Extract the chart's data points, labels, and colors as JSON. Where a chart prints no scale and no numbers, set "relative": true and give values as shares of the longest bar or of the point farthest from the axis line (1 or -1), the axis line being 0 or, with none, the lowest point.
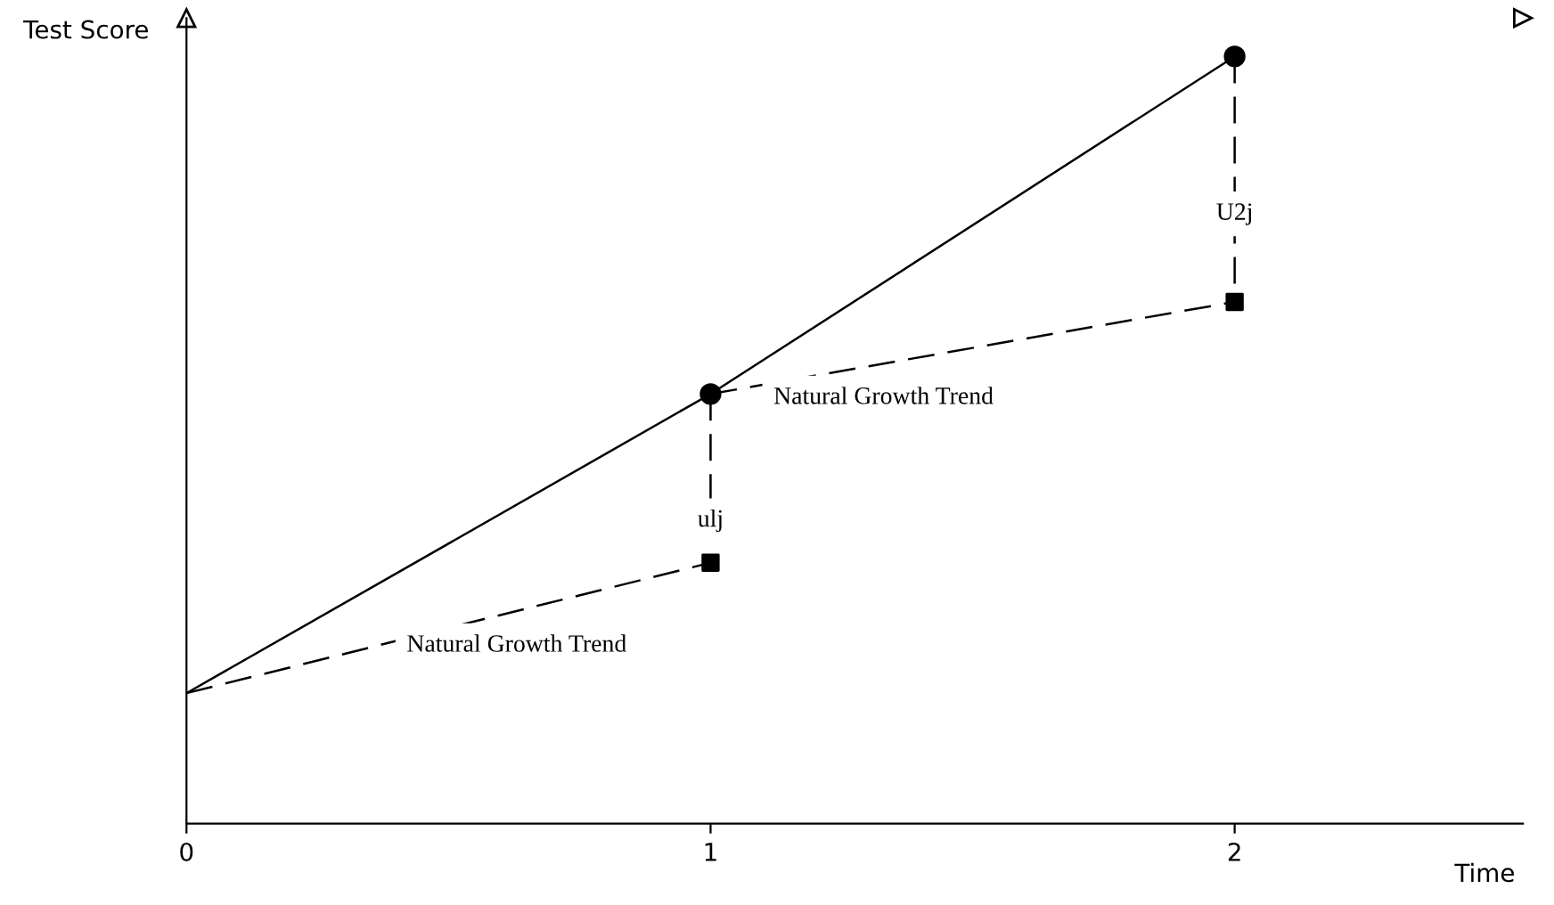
{
  "chart_data": {
    "type": "line",
    "relative": true,
    "xlabel": "Time",
    "ylabel": "Test Score",
    "xlim": [
      0,
      2.55
    ],
    "xticks": [
      0,
      1,
      2
    ],
    "grid": false,
    "legend": false,
    "series": [
      {
        "type": "line",
        "color": "#000000",
        "x": [
          0,
          1,
          2
        ],
        "values": [
          0.17,
          0.56,
          1.0
        ],
        "line_style": "solid",
        "marker": "none"
      },
      {
        "type": "line",
        "color": "#000000",
        "x": [
          0,
          1
        ],
        "values": [
          0.17,
          0.34
        ],
        "line_style": "dashed",
        "marker": "none"
      },
      {
        "type": "line",
        "color": "#000000",
        "x": [
          1,
          2
        ],
        "values": [
          0.56,
          0.68
        ],
        "line_style": "dashed",
        "marker": "none"
      },
      {
        "type": "line",
        "color": "#000000",
        "x": [
          1,
          1
        ],
        "values": [
          0.56,
          0.34
        ],
        "line_style": "dashed",
        "marker": "none"
      },
      {
        "type": "line",
        "color": "#000000",
        "x": [
          2,
          2
        ],
        "values": [
          1.0,
          0.68
        ],
        "line_style": "dashed",
        "marker": "none"
      },
      {
        "type": "scatter",
        "color": "#000000",
        "x": [
          1,
          2
        ],
        "values": [
          0.56,
          1.0
        ],
        "marker": "circle"
      },
      {
        "type": "scatter",
        "color": "#000000",
        "x": [
          1,
          2
        ],
        "values": [
          0.34,
          0.68
        ],
        "marker": "square"
      }
    ],
    "annotations": [
      {
        "text": "ulj",
        "x": 1,
        "y": 0.44
      },
      {
        "text": "U2j",
        "x": 2,
        "y": 0.84
      },
      {
        "text": "Natural Growth Trend",
        "x": 1.33,
        "y": 0.6
      },
      {
        "text": "Natural Growth Trend",
        "x": 0.63,
        "y": 0.277
      }
    ]
  }
}
